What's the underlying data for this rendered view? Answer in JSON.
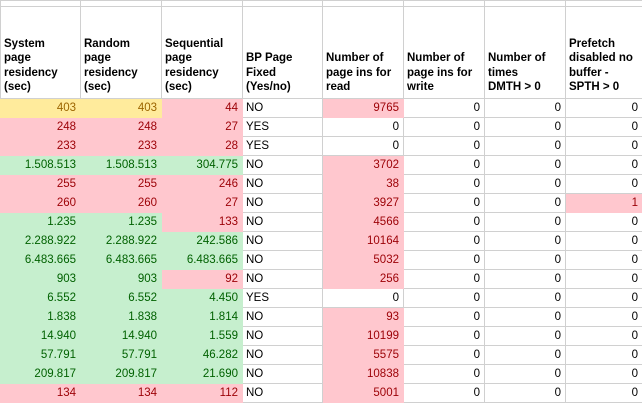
{
  "app": {
    "type": "spreadsheet-grid"
  },
  "colors": {
    "good_bg": "#C6EFCE",
    "good_text": "#006100",
    "bad_bg": "#FFC7CE",
    "bad_text": "#9C0006",
    "neutral_bg": "#FFEB9C",
    "neutral_text": "#9C6500",
    "gridline": "#D0D0D0",
    "header_text": "#000000"
  },
  "table": {
    "headers": [
      "System\npage\nresidency\n(sec)",
      "Random\npage\nresidency\n(sec)",
      "Sequential\npage\nresidency\n(sec)",
      "BP Page\nFixed\n(Yes/no)",
      "Number of\npage ins for\nread",
      "Number of\npage ins for\nwrite",
      "Number of\ntimes\nDMTH > 0",
      "Prefetch\ndisabled no\nbuffer -\nSPTH > 0"
    ],
    "style_legend": {
      "n": "neutral-yellow-fill",
      "b": "bad-pink-fill",
      "g": "good-green-fill",
      "t": "plain-white-left-text",
      "w": "plain-white-number"
    },
    "rows": [
      [
        {
          "v": "403",
          "s": "n"
        },
        {
          "v": "403",
          "s": "n"
        },
        {
          "v": "44",
          "s": "b"
        },
        {
          "v": "NO",
          "s": "t"
        },
        {
          "v": "9765",
          "s": "b"
        },
        {
          "v": "0",
          "s": "w"
        },
        {
          "v": "0",
          "s": "w"
        },
        {
          "v": "0",
          "s": "w"
        }
      ],
      [
        {
          "v": "248",
          "s": "b"
        },
        {
          "v": "248",
          "s": "b"
        },
        {
          "v": "27",
          "s": "b"
        },
        {
          "v": "YES",
          "s": "t"
        },
        {
          "v": "0",
          "s": "w"
        },
        {
          "v": "0",
          "s": "w"
        },
        {
          "v": "0",
          "s": "w"
        },
        {
          "v": "0",
          "s": "w"
        }
      ],
      [
        {
          "v": "233",
          "s": "b"
        },
        {
          "v": "233",
          "s": "b"
        },
        {
          "v": "28",
          "s": "b"
        },
        {
          "v": "YES",
          "s": "t"
        },
        {
          "v": "0",
          "s": "w"
        },
        {
          "v": "0",
          "s": "w"
        },
        {
          "v": "0",
          "s": "w"
        },
        {
          "v": "0",
          "s": "w"
        }
      ],
      [
        {
          "v": "1.508.513",
          "s": "g"
        },
        {
          "v": "1.508.513",
          "s": "g"
        },
        {
          "v": "304.775",
          "s": "g"
        },
        {
          "v": "NO",
          "s": "t"
        },
        {
          "v": "3702",
          "s": "b"
        },
        {
          "v": "0",
          "s": "w"
        },
        {
          "v": "0",
          "s": "w"
        },
        {
          "v": "0",
          "s": "w"
        }
      ],
      [
        {
          "v": "255",
          "s": "b"
        },
        {
          "v": "255",
          "s": "b"
        },
        {
          "v": "246",
          "s": "b"
        },
        {
          "v": "NO",
          "s": "t"
        },
        {
          "v": "38",
          "s": "b"
        },
        {
          "v": "0",
          "s": "w"
        },
        {
          "v": "0",
          "s": "w"
        },
        {
          "v": "0",
          "s": "w"
        }
      ],
      [
        {
          "v": "260",
          "s": "b"
        },
        {
          "v": "260",
          "s": "b"
        },
        {
          "v": "27",
          "s": "b"
        },
        {
          "v": "NO",
          "s": "t"
        },
        {
          "v": "3927",
          "s": "b"
        },
        {
          "v": "0",
          "s": "w"
        },
        {
          "v": "0",
          "s": "w"
        },
        {
          "v": "1",
          "s": "b"
        }
      ],
      [
        {
          "v": "1.235",
          "s": "g"
        },
        {
          "v": "1.235",
          "s": "g"
        },
        {
          "v": "133",
          "s": "b"
        },
        {
          "v": "NO",
          "s": "t"
        },
        {
          "v": "4566",
          "s": "b"
        },
        {
          "v": "0",
          "s": "w"
        },
        {
          "v": "0",
          "s": "w"
        },
        {
          "v": "0",
          "s": "w"
        }
      ],
      [
        {
          "v": "2.288.922",
          "s": "g"
        },
        {
          "v": "2.288.922",
          "s": "g"
        },
        {
          "v": "242.586",
          "s": "g"
        },
        {
          "v": "NO",
          "s": "t"
        },
        {
          "v": "10164",
          "s": "b"
        },
        {
          "v": "0",
          "s": "w"
        },
        {
          "v": "0",
          "s": "w"
        },
        {
          "v": "0",
          "s": "w"
        }
      ],
      [
        {
          "v": "6.483.665",
          "s": "g"
        },
        {
          "v": "6.483.665",
          "s": "g"
        },
        {
          "v": "6.483.665",
          "s": "g"
        },
        {
          "v": "NO",
          "s": "t"
        },
        {
          "v": "5032",
          "s": "b"
        },
        {
          "v": "0",
          "s": "w"
        },
        {
          "v": "0",
          "s": "w"
        },
        {
          "v": "0",
          "s": "w"
        }
      ],
      [
        {
          "v": "903",
          "s": "g"
        },
        {
          "v": "903",
          "s": "g"
        },
        {
          "v": "92",
          "s": "b"
        },
        {
          "v": "NO",
          "s": "t"
        },
        {
          "v": "256",
          "s": "b"
        },
        {
          "v": "0",
          "s": "w"
        },
        {
          "v": "0",
          "s": "w"
        },
        {
          "v": "0",
          "s": "w"
        }
      ],
      [
        {
          "v": "6.552",
          "s": "g"
        },
        {
          "v": "6.552",
          "s": "g"
        },
        {
          "v": "4.450",
          "s": "g"
        },
        {
          "v": "YES",
          "s": "t"
        },
        {
          "v": "0",
          "s": "w"
        },
        {
          "v": "0",
          "s": "w"
        },
        {
          "v": "0",
          "s": "w"
        },
        {
          "v": "0",
          "s": "w"
        }
      ],
      [
        {
          "v": "1.838",
          "s": "g"
        },
        {
          "v": "1.838",
          "s": "g"
        },
        {
          "v": "1.814",
          "s": "g"
        },
        {
          "v": "NO",
          "s": "t"
        },
        {
          "v": "93",
          "s": "b"
        },
        {
          "v": "0",
          "s": "w"
        },
        {
          "v": "0",
          "s": "w"
        },
        {
          "v": "0",
          "s": "w"
        }
      ],
      [
        {
          "v": "14.940",
          "s": "g"
        },
        {
          "v": "14.940",
          "s": "g"
        },
        {
          "v": "1.559",
          "s": "g"
        },
        {
          "v": "NO",
          "s": "t"
        },
        {
          "v": "10199",
          "s": "b"
        },
        {
          "v": "0",
          "s": "w"
        },
        {
          "v": "0",
          "s": "w"
        },
        {
          "v": "0",
          "s": "w"
        }
      ],
      [
        {
          "v": "57.791",
          "s": "g"
        },
        {
          "v": "57.791",
          "s": "g"
        },
        {
          "v": "46.282",
          "s": "g"
        },
        {
          "v": "NO",
          "s": "t"
        },
        {
          "v": "5575",
          "s": "b"
        },
        {
          "v": "0",
          "s": "w"
        },
        {
          "v": "0",
          "s": "w"
        },
        {
          "v": "0",
          "s": "w"
        }
      ],
      [
        {
          "v": "209.817",
          "s": "g"
        },
        {
          "v": "209.817",
          "s": "g"
        },
        {
          "v": "21.690",
          "s": "g"
        },
        {
          "v": "NO",
          "s": "t"
        },
        {
          "v": "10838",
          "s": "b"
        },
        {
          "v": "0",
          "s": "w"
        },
        {
          "v": "0",
          "s": "w"
        },
        {
          "v": "0",
          "s": "w"
        }
      ],
      [
        {
          "v": "134",
          "s": "b"
        },
        {
          "v": "134",
          "s": "b"
        },
        {
          "v": "112",
          "s": "b"
        },
        {
          "v": "NO",
          "s": "t"
        },
        {
          "v": "5001",
          "s": "b"
        },
        {
          "v": "0",
          "s": "w"
        },
        {
          "v": "0",
          "s": "w"
        },
        {
          "v": "0",
          "s": "w"
        }
      ]
    ]
  }
}
